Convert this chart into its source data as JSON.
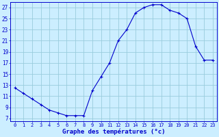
{
  "hours": [
    0,
    1,
    2,
    3,
    4,
    5,
    6,
    7,
    8,
    9,
    10,
    11,
    12,
    13,
    14,
    15,
    16,
    17,
    18,
    19,
    20,
    21,
    22,
    23
  ],
  "temps": [
    12.5,
    11.5,
    10.5,
    9.5,
    8.5,
    8.0,
    7.5,
    7.5,
    7.5,
    12.0,
    14.5,
    17.0,
    21.0,
    23.0,
    26.0,
    27.0,
    27.5,
    27.5,
    26.5,
    26.0,
    25.0,
    20.0,
    17.5,
    17.5
  ],
  "line_color": "#0000cc",
  "marker": "+",
  "marker_size": 3,
  "marker_lw": 0.8,
  "bg_color": "#cceeff",
  "grid_color": "#99ccdd",
  "xlabel": "Graphe des températures (°c)",
  "xlabel_color": "#0000cc",
  "tick_color": "#0000cc",
  "ylim": [
    6.5,
    28
  ],
  "yticks": [
    7,
    9,
    11,
    13,
    15,
    17,
    19,
    21,
    23,
    25,
    27
  ],
  "xticks": [
    0,
    1,
    2,
    3,
    4,
    5,
    6,
    7,
    8,
    9,
    10,
    11,
    12,
    13,
    14,
    15,
    16,
    17,
    18,
    19,
    20,
    21,
    22,
    23
  ],
  "xlim": [
    -0.5,
    23.5
  ],
  "xlabel_fontsize": 6.5,
  "xtick_fontsize": 5.0,
  "ytick_fontsize": 5.5
}
